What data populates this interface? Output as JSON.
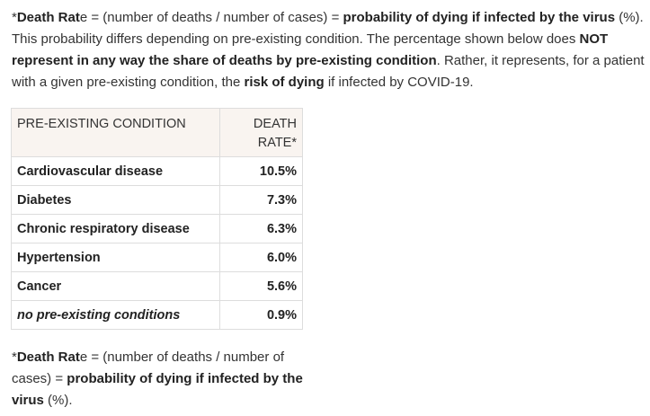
{
  "intro": {
    "star": "*",
    "term_bold": "Death Rat",
    "term_rest": "e",
    "eq1": " = (number of deaths / number of cases) = ",
    "def_bold": "probability of dying if infected by the virus",
    "pct": " (%). This probability differs depending on pre-existing condition. The percentage shown below does ",
    "not_bold": "NOT represent in any way the share of deaths by pre-existing condition",
    "rather": ". Rather, it represents, for a patient with a given pre-existing condition, the ",
    "risk_bold": "risk of dying",
    "end": " if infected by COVID-19."
  },
  "table": {
    "headers": {
      "condition": "PRE-EXISTING CONDITION",
      "rate_line1": "DEATH",
      "rate_line2": "RATE*"
    },
    "rows": [
      {
        "condition": "Cardiovascular disease",
        "rate": "10.5%"
      },
      {
        "condition": "Diabetes",
        "rate": "7.3%"
      },
      {
        "condition": "Chronic respiratory disease",
        "rate": "6.3%"
      },
      {
        "condition": "Hypertension",
        "rate": "6.0%"
      },
      {
        "condition": "Cancer",
        "rate": "5.6%"
      },
      {
        "condition": "no pre-existing conditions",
        "rate": "0.9%"
      }
    ]
  },
  "footnote": {
    "star": "*",
    "term_bold": "Death Rat",
    "term_rest": "e",
    "eq1": " = (number of deaths / number of cases) = ",
    "def_bold": "probability of dying if infected by the virus",
    "end": " (%)."
  }
}
